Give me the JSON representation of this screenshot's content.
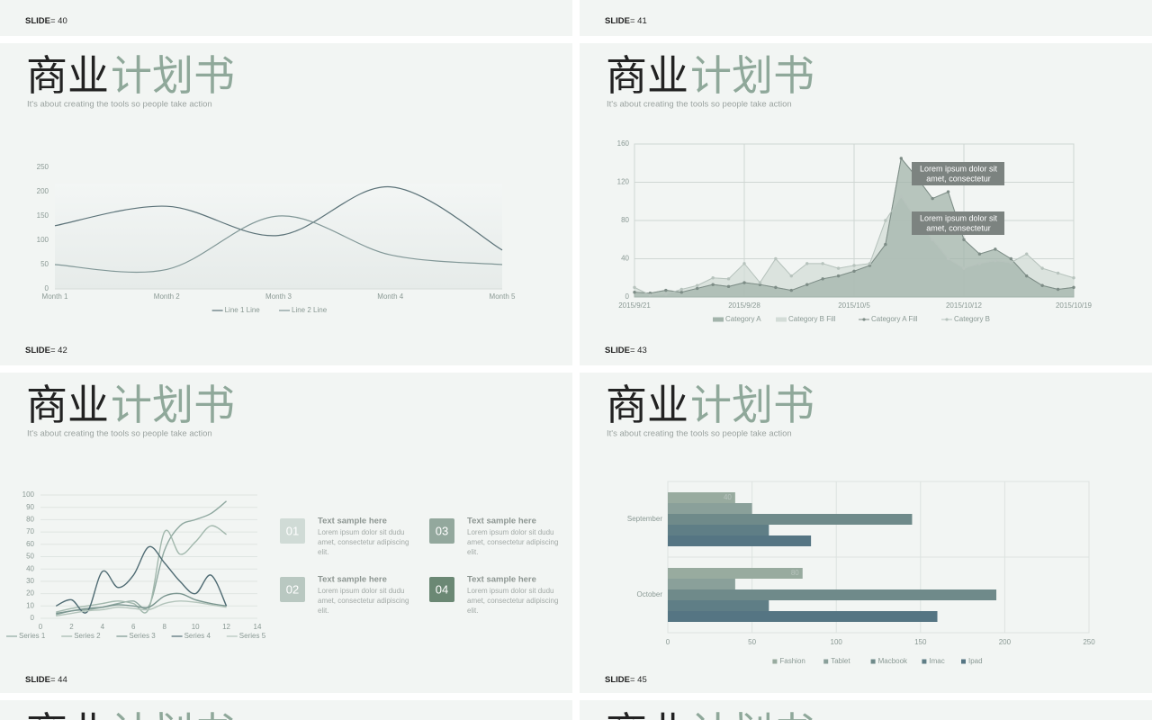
{
  "slides": [
    {
      "label": "SLIDE",
      "number": "= 40"
    },
    {
      "label": "SLIDE",
      "number": "= 41"
    },
    {
      "label": "SLIDE",
      "number": "= 42",
      "title_dark": "商业",
      "title_light": "计划书",
      "subtitle": "It's about creating the tools so people take action",
      "chart": {
        "type": "line",
        "smooth": true,
        "categories": [
          "Month  1",
          "Month  2",
          "Month  3",
          "Month  4",
          "Month  5"
        ],
        "ylim": [
          0,
          250
        ],
        "yticks": [
          0,
          50,
          100,
          150,
          200,
          250
        ],
        "series": [
          {
            "name": "Line 1 Line",
            "color": "#5b7278",
            "values": [
              130,
              170,
              110,
              210,
              80
            ]
          },
          {
            "name": "Line 2 Line",
            "color": "#819797",
            "values": [
              50,
              40,
              150,
              70,
              50
            ]
          }
        ]
      }
    },
    {
      "label": "SLIDE",
      "number": "= 43",
      "title_dark": "商业",
      "title_light": "计划书",
      "subtitle": "It's about creating the tools so people take action",
      "chart": {
        "type": "area-line",
        "grid": true,
        "categories": [
          "2015/9/21",
          null,
          null,
          null,
          null,
          null,
          null,
          "2015/9/28",
          null,
          null,
          null,
          null,
          null,
          null,
          "2015/10/5",
          null,
          null,
          null,
          null,
          null,
          null,
          "2015/10/12",
          null,
          null,
          null,
          null,
          null,
          null,
          "2015/10/19"
        ],
        "ylim": [
          0,
          160
        ],
        "yticks": [
          0,
          40,
          80,
          120,
          160
        ],
        "series": [
          {
            "name": "Category A",
            "kind": "area",
            "color": "#a3b4ab",
            "values": [
              5,
              4,
              7,
              5,
              9,
              13,
              11,
              15,
              13,
              10,
              7,
              13,
              19,
              22,
              27,
              33,
              55,
              145,
              125,
              103,
              110,
              60,
              45,
              50,
              40,
              22,
              12,
              8,
              10
            ]
          },
          {
            "name": "Category B Fill",
            "kind": "area",
            "color": "#d3dcd7",
            "values": [
              10,
              2,
              3,
              8,
              12,
              20,
              19,
              35,
              15,
              40,
              22,
              35,
              35,
              30,
              33,
              35,
              80,
              105,
              80,
              60,
              40,
              30,
              35,
              38,
              36,
              45,
              30,
              25,
              20
            ]
          },
          {
            "name": "Category A Fill",
            "kind": "line",
            "color": "#7d8c86",
            "values": [
              5,
              4,
              7,
              5,
              9,
              13,
              11,
              15,
              13,
              10,
              7,
              13,
              19,
              22,
              27,
              33,
              55,
              145,
              125,
              103,
              110,
              60,
              45,
              50,
              40,
              22,
              12,
              8,
              10
            ]
          },
          {
            "name": "Category B",
            "kind": "line",
            "color": "#b7c3bd",
            "values": [
              10,
              2,
              3,
              8,
              12,
              20,
              19,
              35,
              15,
              40,
              22,
              35,
              35,
              30,
              33,
              35,
              80,
              105,
              80,
              60,
              40,
              30,
              35,
              38,
              36,
              45,
              30,
              25,
              20
            ]
          }
        ],
        "annotations": [
          [
            "Lorem ipsum dolor sit",
            "amet, consectetur"
          ],
          [
            "Lorem ipsum dolor sit",
            "amet, consectetur"
          ]
        ]
      }
    },
    {
      "label": "SLIDE",
      "number": "= 44",
      "title_dark": "商业",
      "title_light": "计划书",
      "subtitle": "It's about creating the tools so people take action",
      "chart": {
        "type": "line",
        "smooth": true,
        "grid": true,
        "x": [
          1,
          2,
          3,
          4,
          5,
          6,
          7,
          8,
          9,
          10,
          11,
          12
        ],
        "xlim": [
          0,
          14
        ],
        "xticks": [
          0,
          2,
          4,
          6,
          8,
          10,
          12,
          14
        ],
        "ylim": [
          0,
          100
        ],
        "yticks": [
          0,
          10,
          20,
          30,
          40,
          50,
          60,
          70,
          80,
          90,
          100
        ],
        "series": [
          {
            "name": "Series 1",
            "color": "#8fa8a0",
            "values": [
              3,
              6,
              7,
              9,
              12,
              14,
              10,
              55,
              75,
              80,
              85,
              95
            ]
          },
          {
            "name": "Series 2",
            "color": "#a2b8ad",
            "values": [
              5,
              8,
              10,
              12,
              14,
              12,
              8,
              70,
              52,
              62,
              75,
              68
            ]
          },
          {
            "name": "Series 3",
            "color": "#7a958f",
            "values": [
              4,
              6,
              8,
              9,
              11,
              10,
              9,
              18,
              20,
              15,
              12,
              10
            ]
          },
          {
            "name": "Series 4",
            "color": "#4f6b73",
            "values": [
              10,
              15,
              5,
              38,
              25,
              35,
              58,
              45,
              30,
              20,
              35,
              10
            ]
          },
          {
            "name": "Series 5",
            "color": "#b3c4bb",
            "values": [
              2,
              4,
              6,
              7,
              9,
              8,
              7,
              12,
              14,
              13,
              11,
              9
            ]
          }
        ]
      },
      "cards": [
        {
          "num": "01",
          "color": "#d0dbd6",
          "title": "Text sample here",
          "lines": [
            "Lorem ipsum dolor sit dudu",
            "amet, consectetur adipiscing",
            "elit."
          ]
        },
        {
          "num": "02",
          "color": "#b9c8c1",
          "title": "Text sample here",
          "lines": [
            "Lorem ipsum dolor sit dudu",
            "amet, consectetur adipiscing",
            "elit."
          ]
        },
        {
          "num": "03",
          "color": "#93a89d",
          "title": "Text sample here",
          "lines": [
            "Lorem ipsum dolor sit dudu",
            "amet, consectetur adipiscing",
            "elit."
          ]
        },
        {
          "num": "04",
          "color": "#6b8874",
          "title": "Text sample here",
          "lines": [
            "Lorem ipsum dolor sit dudu",
            "amet, consectetur adipiscing",
            "elit."
          ]
        }
      ]
    },
    {
      "label": "SLIDE",
      "number": "= 45",
      "title_dark": "商业",
      "title_light": "计划书",
      "subtitle": "It's about creating the tools so people take action",
      "chart": {
        "type": "hbar",
        "grid": true,
        "categories": [
          "September",
          "October"
        ],
        "xlim": [
          0,
          250
        ],
        "xticks": [
          0,
          50,
          100,
          150,
          200,
          250
        ],
        "series": [
          {
            "name": "Fashion",
            "color": "#98ab9f",
            "labels": true,
            "values": [
              40,
              80
            ]
          },
          {
            "name": "Tablet",
            "color": "#8aa09a",
            "values": [
              50,
              40
            ]
          },
          {
            "name": "Macbook",
            "color": "#6f8a8a",
            "values": [
              145,
              195
            ]
          },
          {
            "name": "Imac",
            "color": "#5f7e86",
            "values": [
              60,
              60
            ]
          },
          {
            "name": "Ipad",
            "color": "#557583",
            "values": [
              85,
              160
            ]
          }
        ]
      }
    },
    {
      "title_dark": "商业",
      "title_light": "计划书"
    },
    {
      "title_dark": "商业",
      "title_light": "计划书"
    }
  ]
}
